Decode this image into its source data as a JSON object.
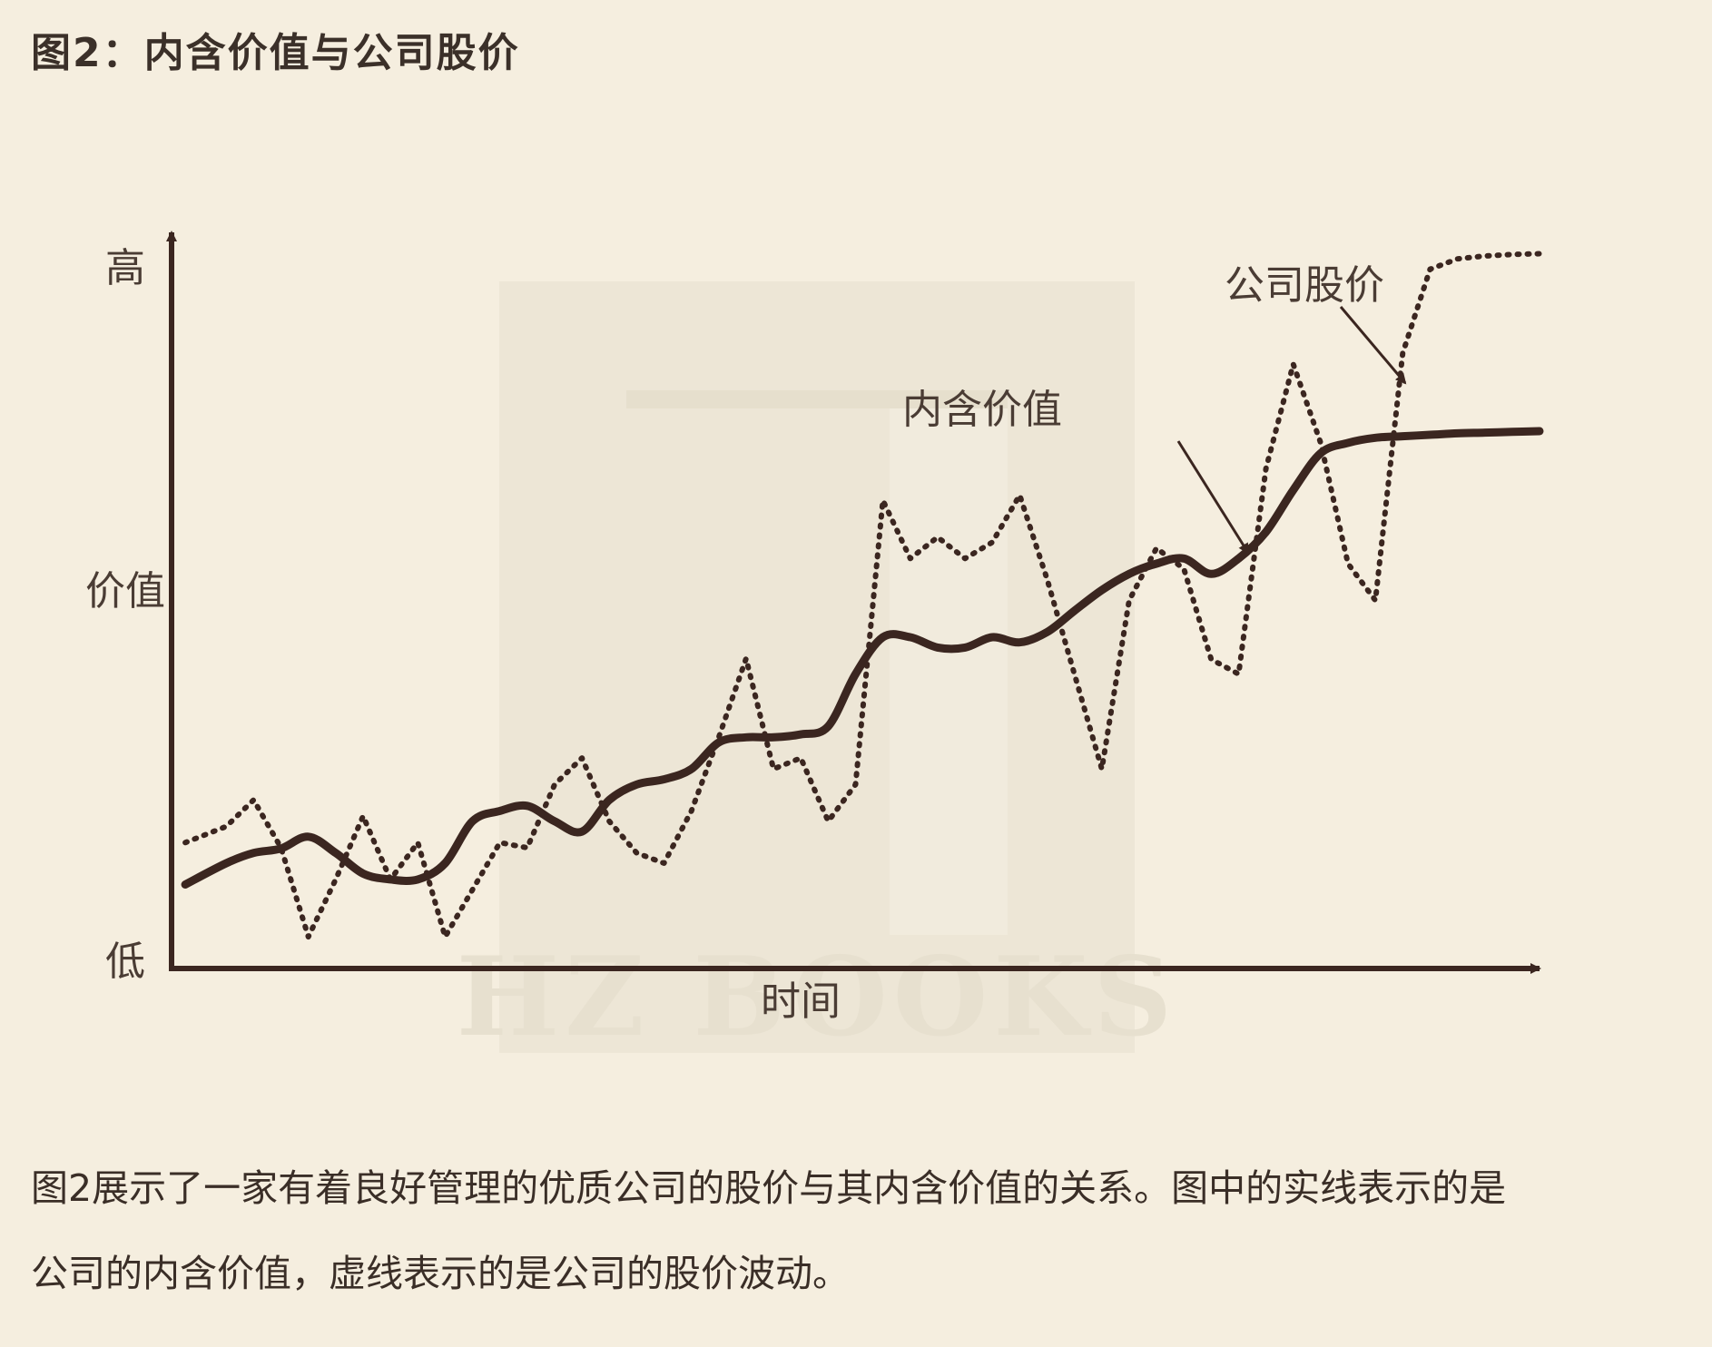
{
  "title": "图2：内含价值与公司股价",
  "caption_lines": [
    "图2展示了一家有着良好管理的优质公司的股价与其内含价值的关系。图中的实线表示的是",
    "公司的内含价值，虚线表示的是公司的股价波动。"
  ],
  "watermark": "HZ BOOKS",
  "colors": {
    "background": "#f5eedf",
    "line": "#3b2620",
    "axis": "#3b2620",
    "text": "#3a2e27",
    "watermark": "#ebe4d3"
  },
  "chart_data": {
    "type": "line",
    "xlabel": "时间",
    "ylabel": "价值",
    "y_high_label": "高",
    "y_low_label": "低",
    "xlim": [
      0,
      100
    ],
    "ylim": [
      0,
      100
    ],
    "x_ticks": false,
    "y_ticks": false,
    "grid": false,
    "series": [
      {
        "name": "内含价值",
        "style": "solid",
        "x": [
          1,
          4,
          6,
          8,
          10,
          12,
          14,
          16,
          18,
          20,
          22,
          24,
          26,
          28,
          30,
          32,
          34,
          36,
          38,
          40,
          42,
          44,
          46,
          48,
          50,
          52,
          54,
          56,
          58,
          60,
          62,
          64,
          66,
          68,
          70,
          72,
          74,
          76,
          78,
          80,
          82,
          84,
          86,
          88,
          90,
          92,
          94,
          96,
          98,
          100
        ],
        "y": [
          11.4,
          14.3,
          15.7,
          16.3,
          17.9,
          15.7,
          12.9,
          12.1,
          12.1,
          14.3,
          20.0,
          21.4,
          22.1,
          20.0,
          18.6,
          22.9,
          25.0,
          25.7,
          27.1,
          30.7,
          31.4,
          31.4,
          31.8,
          32.9,
          40.0,
          45.0,
          45.0,
          43.6,
          43.6,
          45.0,
          44.3,
          45.7,
          48.6,
          51.4,
          53.6,
          55.0,
          55.7,
          53.6,
          55.7,
          59.3,
          65.0,
          70.0,
          71.4,
          72.1,
          72.3,
          72.5,
          72.7,
          72.8,
          72.9,
          73.0
        ]
      },
      {
        "name": "公司股价",
        "style": "dotted",
        "x": [
          1,
          4,
          6,
          8,
          10,
          12,
          14,
          16,
          18,
          20,
          22,
          24,
          26,
          28,
          30,
          32,
          34,
          36,
          38,
          40,
          42,
          44,
          46,
          48,
          50,
          52,
          54,
          56,
          58,
          60,
          62,
          64,
          66,
          68,
          70,
          72,
          74,
          76,
          78,
          80,
          82,
          84,
          86,
          88,
          90,
          92,
          94,
          96,
          98,
          100
        ],
        "y": [
          17.1,
          19.3,
          22.9,
          16.4,
          4.3,
          12.1,
          20.7,
          12.1,
          17.1,
          4.3,
          10.7,
          17.1,
          16.4,
          25.0,
          28.6,
          20.0,
          15.7,
          14.3,
          21.4,
          31.4,
          42.1,
          27.1,
          28.6,
          20.0,
          25.0,
          63.6,
          55.7,
          58.6,
          55.7,
          57.9,
          64.3,
          52.9,
          40.0,
          27.1,
          50.0,
          57.1,
          54.3,
          42.0,
          40.0,
          67.9,
          82.1,
          71.4,
          55.0,
          50.0,
          83.6,
          95.0,
          96.4,
          96.8,
          97.0,
          97.1
        ]
      }
    ],
    "annotations": [
      {
        "text": "内含价值",
        "target_series": "内含价值"
      },
      {
        "text": "公司股价",
        "target_series": "公司股价"
      }
    ]
  }
}
